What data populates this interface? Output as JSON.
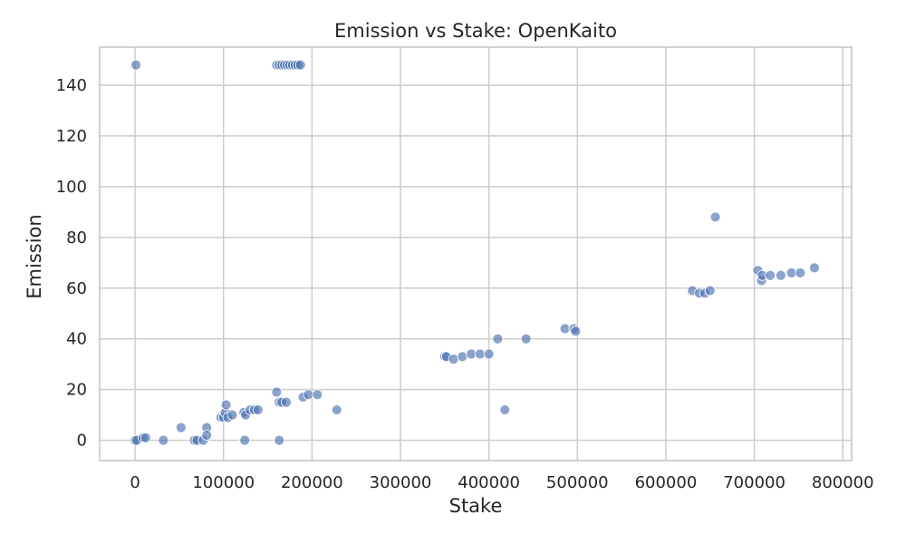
{
  "chart_data": {
    "type": "scatter",
    "title": "Emission vs Stake: OpenKaito",
    "xlabel": "Stake",
    "ylabel": "Emission",
    "xlim": [
      -40000,
      810000
    ],
    "ylim": [
      -8,
      155
    ],
    "xticks": [
      0,
      100000,
      200000,
      300000,
      400000,
      500000,
      600000,
      700000,
      800000
    ],
    "yticks": [
      0,
      20,
      40,
      60,
      80,
      100,
      120,
      140
    ],
    "grid": true,
    "point_color": "#4c72b0",
    "points": [
      {
        "x": 1000,
        "y": 148
      },
      {
        "x": 160000,
        "y": 148
      },
      {
        "x": 163000,
        "y": 148
      },
      {
        "x": 166000,
        "y": 148
      },
      {
        "x": 169000,
        "y": 148
      },
      {
        "x": 172000,
        "y": 148
      },
      {
        "x": 175000,
        "y": 148
      },
      {
        "x": 178000,
        "y": 148
      },
      {
        "x": 181000,
        "y": 148
      },
      {
        "x": 184000,
        "y": 148
      },
      {
        "x": 187000,
        "y": 148
      },
      {
        "x": 0,
        "y": 0
      },
      {
        "x": 2000,
        "y": 0
      },
      {
        "x": 9000,
        "y": 1
      },
      {
        "x": 12000,
        "y": 1
      },
      {
        "x": 32000,
        "y": 0
      },
      {
        "x": 52000,
        "y": 5
      },
      {
        "x": 67000,
        "y": 0
      },
      {
        "x": 70000,
        "y": 0
      },
      {
        "x": 77000,
        "y": 0
      },
      {
        "x": 81000,
        "y": 5
      },
      {
        "x": 81000,
        "y": 2
      },
      {
        "x": 97000,
        "y": 9
      },
      {
        "x": 100000,
        "y": 9
      },
      {
        "x": 102000,
        "y": 11
      },
      {
        "x": 103000,
        "y": 14
      },
      {
        "x": 105000,
        "y": 9
      },
      {
        "x": 110000,
        "y": 10
      },
      {
        "x": 123000,
        "y": 11
      },
      {
        "x": 125000,
        "y": 10
      },
      {
        "x": 124000,
        "y": 0
      },
      {
        "x": 130000,
        "y": 12
      },
      {
        "x": 135000,
        "y": 12
      },
      {
        "x": 139000,
        "y": 12
      },
      {
        "x": 160000,
        "y": 19
      },
      {
        "x": 163000,
        "y": 15
      },
      {
        "x": 163000,
        "y": 0
      },
      {
        "x": 166000,
        "y": 15
      },
      {
        "x": 171000,
        "y": 15
      },
      {
        "x": 190000,
        "y": 17
      },
      {
        "x": 196000,
        "y": 18
      },
      {
        "x": 206000,
        "y": 18
      },
      {
        "x": 228000,
        "y": 12
      },
      {
        "x": 350000,
        "y": 33
      },
      {
        "x": 352000,
        "y": 33
      },
      {
        "x": 360000,
        "y": 32
      },
      {
        "x": 370000,
        "y": 33
      },
      {
        "x": 380000,
        "y": 34
      },
      {
        "x": 390000,
        "y": 34
      },
      {
        "x": 400000,
        "y": 34
      },
      {
        "x": 410000,
        "y": 40
      },
      {
        "x": 418000,
        "y": 12
      },
      {
        "x": 442000,
        "y": 40
      },
      {
        "x": 486000,
        "y": 44
      },
      {
        "x": 496000,
        "y": 44
      },
      {
        "x": 498000,
        "y": 43
      },
      {
        "x": 630000,
        "y": 59
      },
      {
        "x": 638000,
        "y": 58
      },
      {
        "x": 644000,
        "y": 58
      },
      {
        "x": 650000,
        "y": 59
      },
      {
        "x": 656000,
        "y": 88
      },
      {
        "x": 704000,
        "y": 67
      },
      {
        "x": 708000,
        "y": 63
      },
      {
        "x": 709000,
        "y": 65
      },
      {
        "x": 718000,
        "y": 65
      },
      {
        "x": 730000,
        "y": 65
      },
      {
        "x": 742000,
        "y": 66
      },
      {
        "x": 752000,
        "y": 66
      },
      {
        "x": 768000,
        "y": 68
      }
    ]
  }
}
